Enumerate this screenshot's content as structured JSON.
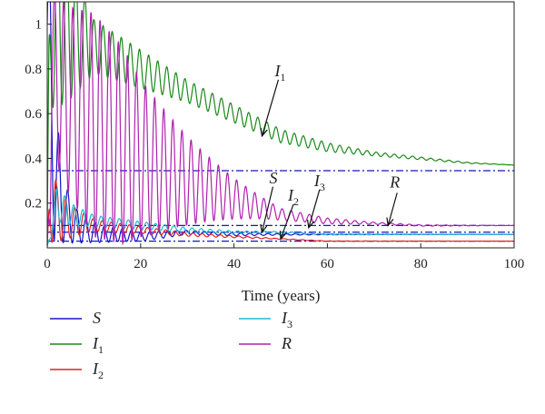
{
  "chart_data": {
    "type": "line",
    "title": "",
    "xlabel": "Time (years)",
    "ylabel": "",
    "xlim": [
      0,
      100
    ],
    "ylim": [
      0,
      1.1
    ],
    "x_ticks": [
      "0",
      "20",
      "40",
      "60",
      "80",
      "100"
    ],
    "y_ticks": [
      "0.2",
      "0.4",
      "0.6",
      "0.8",
      "1"
    ],
    "grid": false,
    "legend_position": "bottom",
    "series": [
      {
        "name": "S",
        "sub": "",
        "color": "#1515c8",
        "x": [
          0,
          0.3,
          1,
          2,
          4,
          6,
          8,
          10,
          12,
          15,
          20,
          25,
          30,
          40,
          50,
          60,
          80,
          100
        ],
        "y": [
          1.0,
          0.9,
          0.6,
          0.3,
          0.15,
          0.1,
          0.08,
          0.07,
          0.06,
          0.06,
          0.05,
          0.06,
          0.07,
          0.06,
          0.06,
          0.06,
          0.06,
          0.06
        ]
      },
      {
        "name": "I",
        "sub": "1",
        "color": "#1a8a1a",
        "x": [
          0,
          0.5,
          1,
          2,
          5,
          10,
          20,
          30,
          40,
          50,
          60,
          70,
          80,
          90,
          100
        ],
        "y": [
          0.05,
          0.6,
          1.09,
          1.05,
          0.98,
          0.9,
          0.8,
          0.7,
          0.6,
          0.5,
          0.45,
          0.42,
          0.4,
          0.38,
          0.37
        ]
      },
      {
        "name": "I",
        "sub": "2",
        "color": "#e02020",
        "x": [
          0,
          1,
          2,
          5,
          10,
          20,
          30,
          40,
          50,
          60,
          80,
          100
        ],
        "y": [
          0.0,
          0.3,
          0.15,
          0.12,
          0.1,
          0.08,
          0.06,
          0.05,
          0.04,
          0.03,
          0.03,
          0.03
        ]
      },
      {
        "name": "I",
        "sub": "3",
        "color": "#20b8d0",
        "x": [
          0,
          2,
          5,
          10,
          20,
          30,
          40,
          50,
          60,
          80,
          100
        ],
        "y": [
          0.0,
          0.2,
          0.15,
          0.12,
          0.1,
          0.08,
          0.07,
          0.07,
          0.06,
          0.06,
          0.06
        ]
      },
      {
        "name": "R",
        "sub": "",
        "color": "#b020b0",
        "x": [
          0,
          1,
          2,
          5,
          10,
          20,
          30,
          40,
          50,
          60,
          80,
          100
        ],
        "y": [
          0.0,
          0.8,
          0.75,
          0.65,
          0.55,
          0.4,
          0.3,
          0.22,
          0.15,
          0.12,
          0.1,
          0.1
        ]
      }
    ],
    "reference_lines": [
      {
        "y": 0.345,
        "color": "#1515c8"
      },
      {
        "y": 0.1,
        "color": "#1515c8"
      },
      {
        "y": 0.07,
        "color": "#1515c8"
      },
      {
        "y": 0.03,
        "color": "#1515c8"
      }
    ],
    "annotations": [
      {
        "text": "I",
        "sub": "1",
        "x": 46,
        "y": 0.5
      },
      {
        "text": "S",
        "sub": "",
        "x": 46,
        "y": 0.07
      },
      {
        "text": "I",
        "sub": "2",
        "x": 50,
        "y": 0.04
      },
      {
        "text": "I",
        "sub": "3",
        "x": 56,
        "y": 0.09
      },
      {
        "text": "R",
        "sub": "",
        "x": 73,
        "y": 0.1
      }
    ]
  }
}
